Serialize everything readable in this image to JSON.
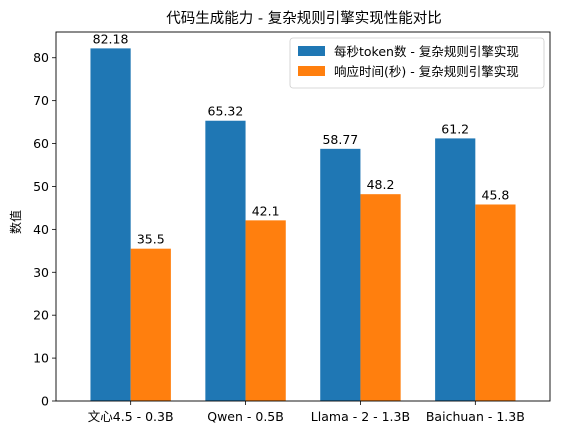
{
  "chart_data": {
    "type": "bar",
    "title": "代码生成能力 - 复杂规则引擎实现性能对比",
    "xlabel": "",
    "ylabel": "数值",
    "ylim": [
      0,
      86
    ],
    "yticks": [
      0,
      10,
      20,
      30,
      40,
      50,
      60,
      70,
      80
    ],
    "categories": [
      "文心4.5 - 0.3B",
      "Qwen - 0.5B",
      "Llama - 2 - 1.3B",
      "Baichuan - 1.3B"
    ],
    "series": [
      {
        "name": "每秒token数 - 复杂规则引擎实现",
        "color": "#1f77b4",
        "values": [
          82.18,
          65.32,
          58.77,
          61.2
        ]
      },
      {
        "name": "响应时间(秒) - 复杂规则引擎实现",
        "color": "#ff7f0e",
        "values": [
          35.5,
          42.1,
          48.2,
          45.8
        ]
      }
    ],
    "data_labels": [
      [
        "82.18",
        "65.32",
        "58.77",
        "61.2"
      ],
      [
        "35.5",
        "42.1",
        "48.2",
        "45.8"
      ]
    ],
    "legend_position": "top-right",
    "grid": false
  }
}
